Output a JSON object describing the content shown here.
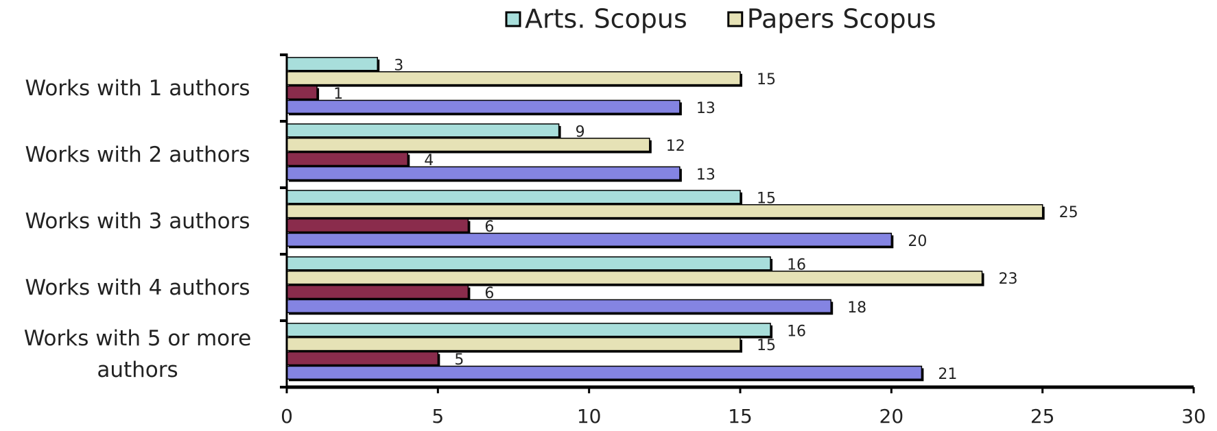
{
  "chart_data": {
    "type": "barh",
    "categories": [
      "Works with 1 authors",
      "Works with 2 authors",
      "Works with 3 authors",
      "Works with 4 authors",
      "Works with 5 or more authors"
    ],
    "series": [
      {
        "name": "Arts. Scopus",
        "color": "#a8dedb",
        "values": [
          3,
          9,
          15,
          16,
          16
        ]
      },
      {
        "name": "Papers Scopus",
        "color": "#e6e2b6",
        "values": [
          15,
          12,
          25,
          23,
          15
        ]
      },
      {
        "color": "#8a2c4c",
        "values": [
          1,
          4,
          6,
          6,
          5
        ]
      },
      {
        "color": "#8484e2",
        "values": [
          13,
          13,
          20,
          18,
          21
        ]
      }
    ],
    "xlim": [
      0,
      30
    ],
    "xticks": [
      0,
      5,
      10,
      15,
      20,
      25,
      30
    ],
    "legend": "top",
    "grid": false
  }
}
